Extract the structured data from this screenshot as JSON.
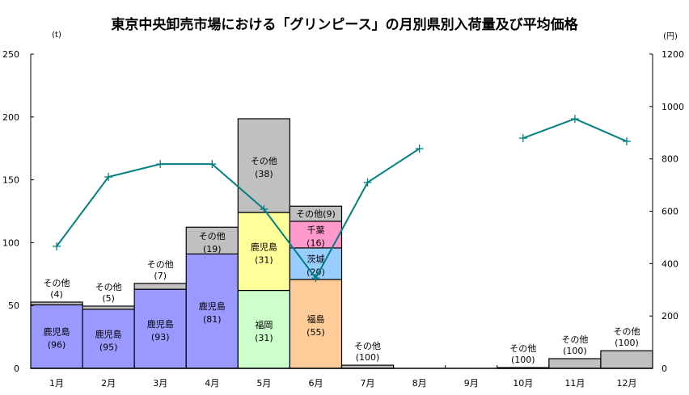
{
  "chart_data": {
    "type": "bar",
    "stacked": true,
    "title": "東京中央卸売市場における「グリンピース」の月別県別入荷量及び平均価格",
    "left_axis": {
      "unit": "(t)",
      "ylim": [
        0,
        250
      ],
      "ticks": [
        0,
        50,
        100,
        150,
        200,
        250
      ]
    },
    "right_axis": {
      "unit": "(円)",
      "ylim": [
        0,
        1200
      ],
      "ticks": [
        0,
        200,
        400,
        600,
        800,
        1000,
        1200
      ]
    },
    "categories": [
      "1月",
      "2月",
      "3月",
      "4月",
      "5月",
      "6月",
      "7月",
      "8月",
      "9月",
      "10月",
      "11月",
      "12月"
    ],
    "colors": {
      "鹿児島": "#9999ff",
      "福岡": "#ccffcc",
      "福島": "#ffcc99",
      "茨城": "#99ccff",
      "千葉": "#ff99cc",
      "その他": "#c0c0c0",
      "鹿児島_5月": "#ffff99",
      "price_line": "#008080"
    },
    "bars": [
      {
        "month": "1月",
        "segments": [
          {
            "name": "鹿児島",
            "tons": 50.6,
            "share_label": "(96)"
          },
          {
            "name": "その他",
            "tons": 2.1,
            "share_label": "(4)"
          }
        ]
      },
      {
        "month": "2月",
        "segments": [
          {
            "name": "鹿児島",
            "tons": 47.0,
            "share_label": "(95)"
          },
          {
            "name": "その他",
            "tons": 2.5,
            "share_label": "(5)"
          }
        ]
      },
      {
        "month": "3月",
        "segments": [
          {
            "name": "鹿児島",
            "tons": 62.9,
            "share_label": "(93)"
          },
          {
            "name": "その他",
            "tons": 4.7,
            "share_label": "(7)"
          }
        ]
      },
      {
        "month": "4月",
        "segments": [
          {
            "name": "鹿児島",
            "tons": 91.0,
            "share_label": "(81)"
          },
          {
            "name": "その他",
            "tons": 21.3,
            "share_label": "(19)"
          }
        ]
      },
      {
        "month": "5月",
        "segments": [
          {
            "name": "福岡",
            "tons": 62.0,
            "share_label": "(31)"
          },
          {
            "name": "鹿児島",
            "tons": 62.0,
            "share_label": "(31)",
            "color_key": "鹿児島_5月"
          },
          {
            "name": "その他",
            "tons": 74.6,
            "share_label": "(38)"
          }
        ]
      },
      {
        "month": "6月",
        "segments": [
          {
            "name": "福島",
            "tons": 70.7,
            "share_label": "(55)"
          },
          {
            "name": "茨城",
            "tons": 25.1,
            "share_label": "(20)"
          },
          {
            "name": "千葉",
            "tons": 21.2,
            "share_label": "(16)"
          },
          {
            "name": "その他",
            "tons": 12.0,
            "share_label": "(9)",
            "inline": true
          }
        ]
      },
      {
        "month": "7月",
        "segments": [
          {
            "name": "その他",
            "tons": 2.5,
            "share_label": "(100)"
          }
        ]
      },
      {
        "month": "8月",
        "segments": []
      },
      {
        "month": "9月",
        "segments": []
      },
      {
        "month": "10月",
        "segments": [
          {
            "name": "その他",
            "tons": 0.6,
            "share_label": "(100)"
          }
        ]
      },
      {
        "month": "11月",
        "segments": [
          {
            "name": "その他",
            "tons": 7.7,
            "share_label": "(100)"
          }
        ]
      },
      {
        "month": "12月",
        "segments": [
          {
            "name": "その他",
            "tons": 14.0,
            "share_label": "(100)"
          }
        ]
      }
    ],
    "price_series": {
      "name": "平均価格",
      "values": [
        466,
        731,
        780,
        780,
        608,
        345,
        710,
        839,
        null,
        879,
        953,
        867
      ]
    }
  }
}
